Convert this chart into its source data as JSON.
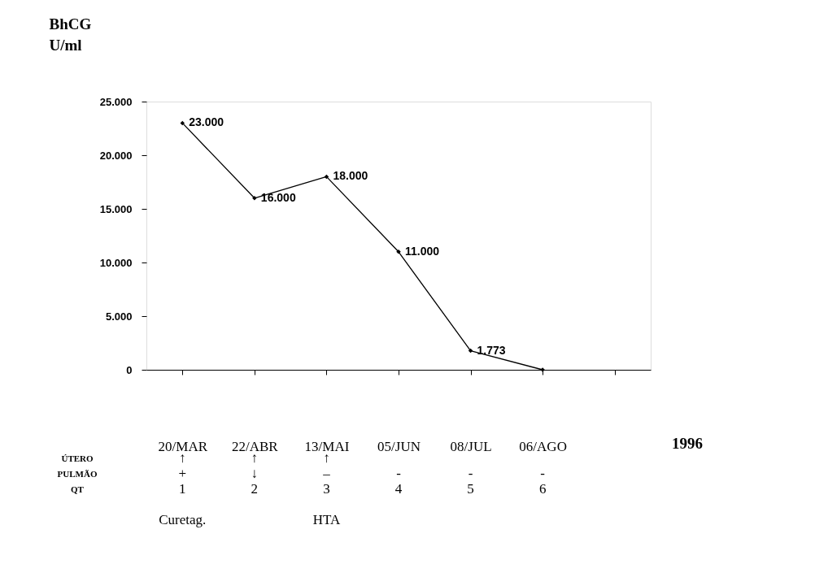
{
  "chart_data": {
    "type": "line",
    "ylabel": "BhCG\nU/ml",
    "categories": [
      "20/MAR\n↑\n+\n1\n\nCuretag.",
      "22/ABR\n↑\n↓\n2",
      "13/MAI\n↑\n–\n3\n\nHTA",
      "05/JUN\n\n-\n4",
      "08/JUL\n\n-\n5",
      "06/AGO\n\n-\n6",
      null
    ],
    "series": [
      {
        "color": "#000000",
        "values": [
          23000,
          16000,
          18000,
          11000,
          1773,
          0,
          null
        ],
        "value_labels": [
          "23.000",
          "16.000",
          "18.000",
          "11.000",
          "1.773",
          null,
          null
        ]
      }
    ],
    "ylim": [
      0,
      25000
    ],
    "yticks": [
      0,
      {
        "value": 5000,
        "label": "5.000"
      },
      {
        "value": 10000,
        "label": "10.000"
      },
      {
        "value": 15000,
        "label": "15.000"
      },
      {
        "value": 20000,
        "label": "20.000"
      },
      {
        "value": 25000,
        "label": "25.000"
      }
    ],
    "annotations": [
      "1996",
      "ÚTERO",
      "PULMÃO",
      "QT"
    ],
    "marker": "diamond",
    "line_style": "solid",
    "grid": false
  }
}
